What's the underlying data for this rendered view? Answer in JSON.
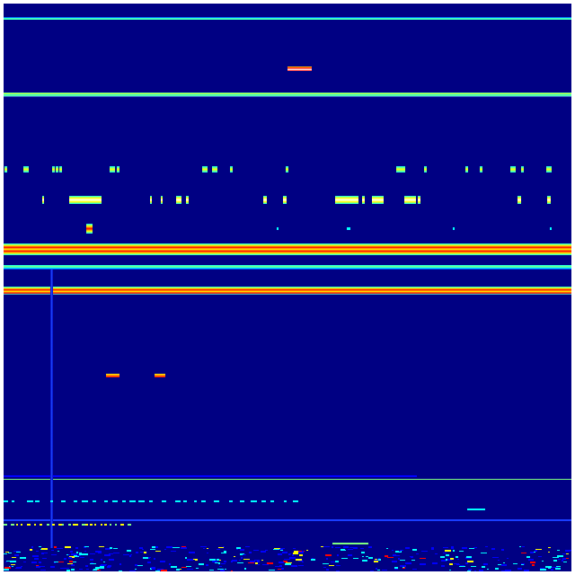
{
  "colormap": {
    "name": "jet",
    "background": "#000083",
    "low": "#0000ff",
    "mid_low": "#00ffff",
    "mid": "#7fff7f",
    "mid_high": "#ffff00",
    "high": "#ff0000"
  }
}
